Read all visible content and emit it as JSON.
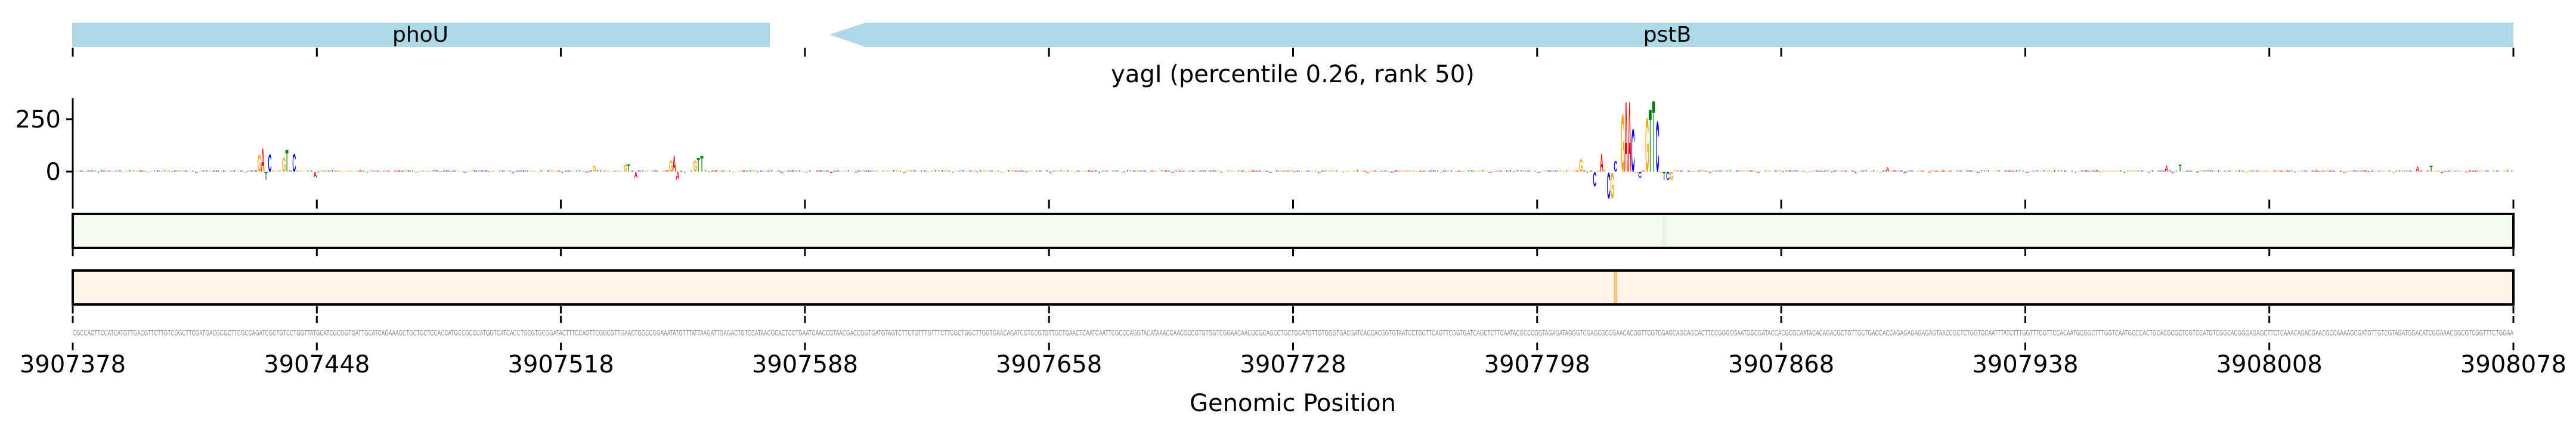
{
  "chart_data": {
    "type": "sequence-logo",
    "title": "yagI (percentile 0.26, rank 50)",
    "xlabel": "Genomic Position",
    "x_start": 3907378,
    "x_end": 3908078,
    "x_ticks": [
      "3907378",
      "3907448",
      "3907518",
      "3907588",
      "3907658",
      "3907728",
      "3907798",
      "3907868",
      "3907938",
      "3908008",
      "3908078"
    ],
    "y_ticks": [
      "250",
      "0"
    ],
    "y_tick_values": [
      250,
      0
    ],
    "ylim": [
      -134,
      350
    ],
    "base_colors": {
      "A": "#ff0000",
      "C": "#0000ff",
      "G": "#ffa500",
      "T": "#008000"
    },
    "genes": [
      {
        "name": "phoU",
        "start": 3907378,
        "end": 3907578,
        "strand": "+"
      },
      {
        "name": "pstB",
        "start": 3907595,
        "end": 3908078,
        "strand": "-"
      }
    ],
    "gene_color": "#add8e6",
    "baseline_height": 6,
    "peaks": [
      {
        "pos": 53,
        "base": "G",
        "value": 81
      },
      {
        "pos": 54,
        "base": "A",
        "value": 113
      },
      {
        "pos": 55,
        "base": "T",
        "value": -40
      },
      {
        "pos": 56,
        "base": "C",
        "value": 85
      },
      {
        "pos": 60,
        "base": "G",
        "value": 68
      },
      {
        "pos": 61,
        "base": "T",
        "value": 109
      },
      {
        "pos": 63,
        "base": "C",
        "value": 88
      },
      {
        "pos": 69,
        "base": "A",
        "value": -28
      },
      {
        "pos": 149,
        "base": "G",
        "value": 29
      },
      {
        "pos": 158,
        "base": "G",
        "value": 35
      },
      {
        "pos": 159,
        "base": "T",
        "value": 35
      },
      {
        "pos": 161,
        "base": "A",
        "value": -30
      },
      {
        "pos": 171,
        "base": "G",
        "value": 55
      },
      {
        "pos": 172,
        "base": "A",
        "value": 78
      },
      {
        "pos": 173,
        "base": "A",
        "value": -37
      },
      {
        "pos": 178,
        "base": "G",
        "value": 55
      },
      {
        "pos": 179,
        "base": "T",
        "value": 68
      },
      {
        "pos": 180,
        "base": "T",
        "value": 78
      },
      {
        "pos": 432,
        "base": "G",
        "value": 60
      },
      {
        "pos": 436,
        "base": "C",
        "value": -70
      },
      {
        "pos": 438,
        "base": "A",
        "value": 90
      },
      {
        "pos": 440,
        "base": "C",
        "value": -128
      },
      {
        "pos": 441,
        "base": "G",
        "value": -128
      },
      {
        "pos": 442,
        "base": "C",
        "value": 52
      },
      {
        "pos": 444,
        "base": "G",
        "value": 284
      },
      {
        "pos": 445,
        "base": "A",
        "value": 346
      },
      {
        "pos": 446,
        "base": "A",
        "value": 346
      },
      {
        "pos": 447,
        "base": "C",
        "value": 210
      },
      {
        "pos": 449,
        "base": "C",
        "value": -30
      },
      {
        "pos": 451,
        "base": "G",
        "value": 265
      },
      {
        "pos": 452,
        "base": "T",
        "value": 308
      },
      {
        "pos": 453,
        "base": "T",
        "value": 350
      },
      {
        "pos": 454,
        "base": "C",
        "value": 247
      },
      {
        "pos": 456,
        "base": "T",
        "value": -40
      },
      {
        "pos": 457,
        "base": "C",
        "value": -40
      },
      {
        "pos": 458,
        "base": "G",
        "value": -40
      },
      {
        "pos": 520,
        "base": "A",
        "value": 22
      },
      {
        "pos": 600,
        "base": "A",
        "value": 30
      },
      {
        "pos": 604,
        "base": "T",
        "value": 34
      },
      {
        "pos": 672,
        "base": "A",
        "value": 25
      },
      {
        "pos": 676,
        "base": "T",
        "value": 28
      }
    ],
    "track1": {
      "color": "#f3faf0",
      "highlight_pos": 456,
      "highlight_color": "#e6f4e0"
    },
    "track2": {
      "color": "#fef3e7",
      "highlight_pos": 442,
      "highlight_color": "#f3c47c"
    }
  },
  "sequence": "CGCCACTTCCATCATGTTGACGTTCTTGTCGGCTTCGATGACGCGCTTCGCCAGATCGCTGTCCTGGTTATGCATCGCGGTGATTGCATCAGAAAGCTGCTGCTCCACCATGCCGCCCATGGTCATCACCTGCGTGCGGATACTTTCCAGTTCGGCGTTGAACTGGCCGGAAATATGTTTATTAAGATTGAGACTGTCCATAACGCACTCCTGAATCAACCGTAACGACCGGTGATGTAGTCTTCTGTTTGTTTCTTCGCTGGCTTGGTGAACAGATCGTCCGTGTTGCTGAACTCAATCAATTCGCCCAGGTACATAAACCAACGCCGTGTGGTCGGAACAACGCGCAGCCTGCTGCATGTTGTGGGTGACGATCACCACGGTGTAATCCTGCTTCAGTTCGGTGATCAGCTCTTCAATACGCCCGGTAGAGATAGGGTCGAGCGCCGAACACGGTTCGTCGAGCAGCAGCACTTCCGGGCGAATGGCGATACCACGCGCAATACACAGACGCTGTTGCTGACCACCAGAGAGAGAGAGTAACCGCTCTGGTGCAATTTATCTTTGGTTTCGTTCCACAATGCGGCTTTGGTCAATGCCCACTGCACGCGCTCGTCCATGTCGGCACGGGAGAGCTTCTCAAACAGACGAACGCCAAAAGCGATGTTGTCGTAGATGGACATCGGAAACGGCGTCGGTTTCTGGAA"
}
